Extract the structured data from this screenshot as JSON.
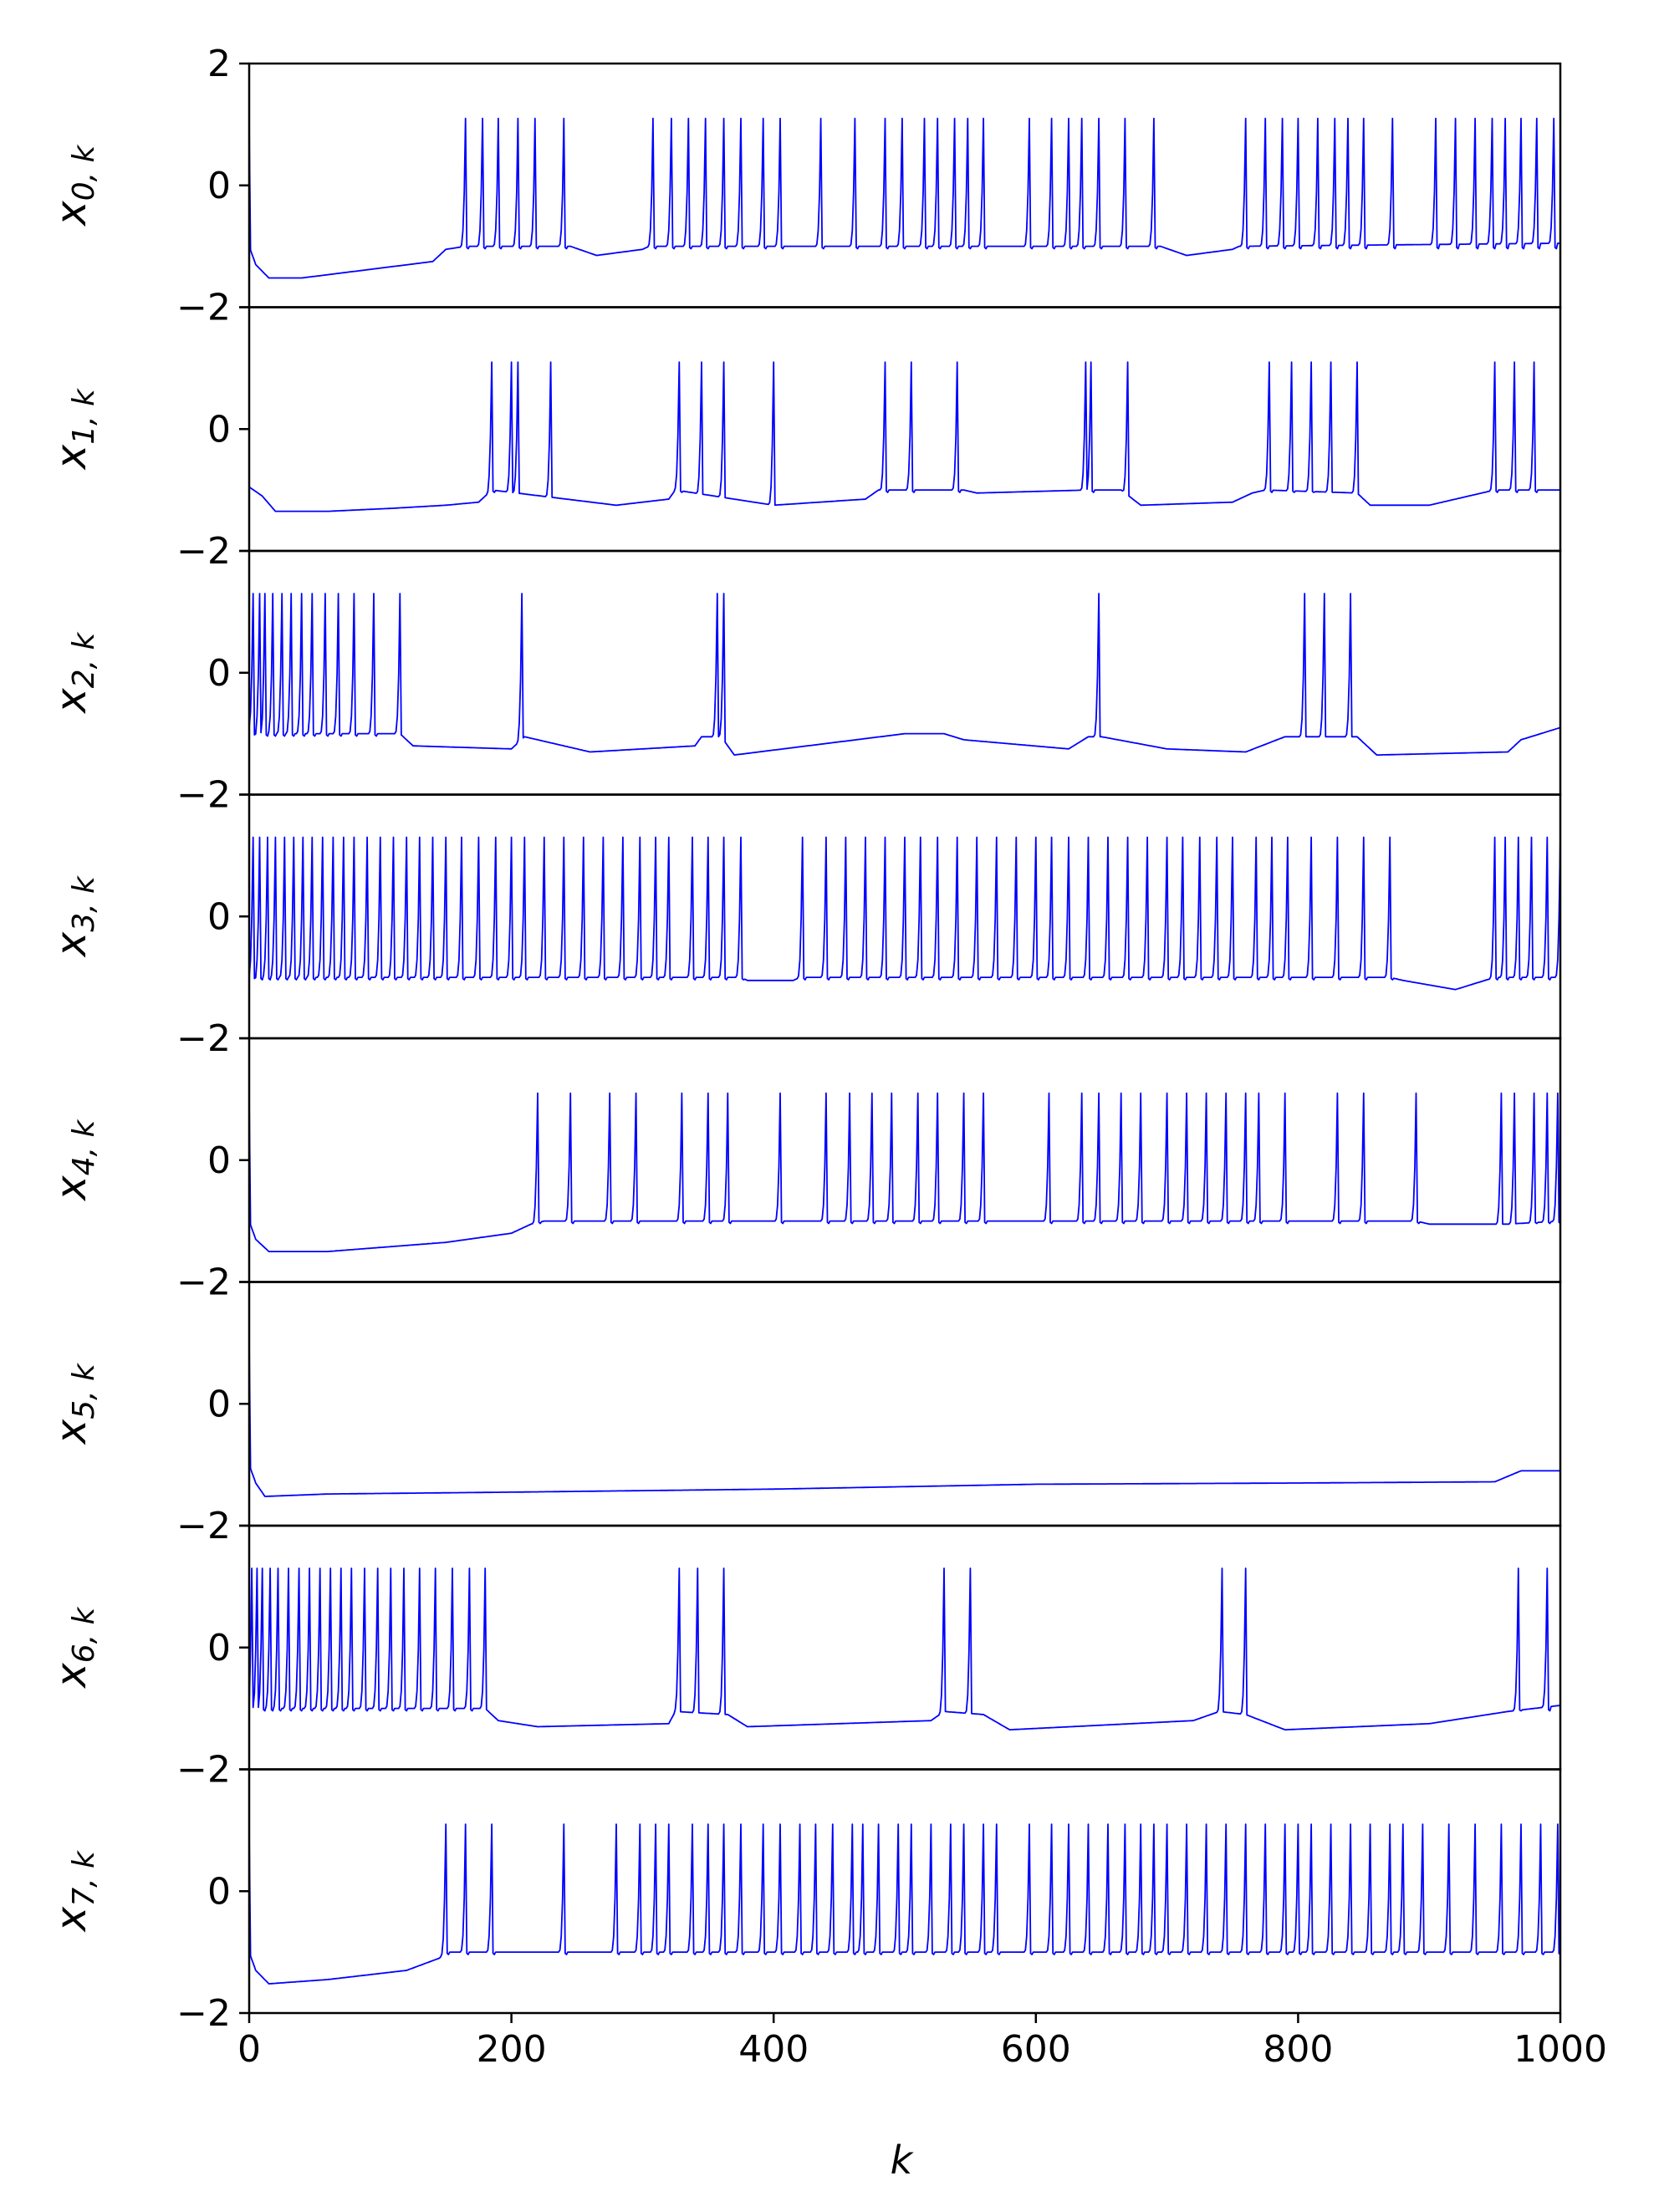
{
  "figure": {
    "xlabel": "k",
    "line_color": "#0000ff",
    "axis_color": "#000000",
    "background": "#ffffff"
  },
  "chart_data": {
    "type": "line",
    "layout": "8 vertically stacked panels sharing x axis",
    "x_range": [
      0,
      1000
    ],
    "y_range": [
      -2,
      2
    ],
    "x_ticks": [
      0,
      200,
      400,
      600,
      800,
      1000
    ],
    "x_tick_labels": [
      "0",
      "200",
      "400",
      "600",
      "800",
      "1000"
    ],
    "y_ticks": [
      2,
      0,
      -2
    ],
    "y_tick_labels": [
      "2",
      "0",
      "−2"
    ],
    "xlabel": "k",
    "grid": false,
    "legend": "none",
    "series": [
      {
        "label_base": "x",
        "label_sub": "0, k",
        "onset": 1.0,
        "rest": -1.05,
        "peak": 1.1,
        "baseline": [
          [
            0,
            -1.0
          ],
          [
            5,
            -1.3
          ],
          [
            15,
            -1.52
          ],
          [
            40,
            -1.52
          ],
          [
            140,
            -1.25
          ],
          [
            150,
            -1.05
          ],
          [
            165,
            -1.0
          ],
          [
            245,
            -1.0
          ],
          [
            265,
            -1.15
          ],
          [
            300,
            -1.05
          ],
          [
            305,
            -1.0
          ],
          [
            560,
            -1.0
          ],
          [
            565,
            -1.0
          ],
          [
            695,
            -1.0
          ],
          [
            715,
            -1.15
          ],
          [
            750,
            -1.05
          ],
          [
            755,
            -1.0
          ],
          [
            1000,
            -0.95
          ]
        ],
        "spikes": [
          165,
          178,
          190,
          205,
          218,
          240,
          308,
          322,
          335,
          348,
          362,
          375,
          392,
          405,
          436,
          462,
          485,
          498,
          515,
          525,
          538,
          548,
          560,
          595,
          612,
          625,
          635,
          648,
          668,
          690,
          760,
          775,
          788,
          800,
          815,
          828,
          838,
          850,
          872,
          905,
          920,
          935,
          948,
          958,
          970,
          982,
          995
        ]
      },
      {
        "label_base": "x",
        "label_sub": "1, k",
        "onset": -0.95,
        "rest": -1.25,
        "peak": 1.1,
        "baseline": [
          [
            0,
            -0.95
          ],
          [
            10,
            -1.1
          ],
          [
            20,
            -1.35
          ],
          [
            60,
            -1.35
          ],
          [
            110,
            -1.3
          ],
          [
            150,
            -1.25
          ],
          [
            175,
            -1.2
          ],
          [
            185,
            -1.0
          ],
          [
            280,
            -1.25
          ],
          [
            320,
            -1.15
          ],
          [
            325,
            -1.0
          ],
          [
            400,
            -1.25
          ],
          [
            470,
            -1.15
          ],
          [
            480,
            -1.0
          ],
          [
            545,
            -1.0
          ],
          [
            555,
            -1.05
          ],
          [
            640,
            -1.0
          ],
          [
            665,
            -1.0
          ],
          [
            680,
            -1.25
          ],
          [
            750,
            -1.2
          ],
          [
            765,
            -1.05
          ],
          [
            775,
            -1.0
          ],
          [
            845,
            -1.05
          ],
          [
            855,
            -1.25
          ],
          [
            900,
            -1.25
          ],
          [
            940,
            -1.05
          ],
          [
            950,
            -1.0
          ],
          [
            1000,
            -1.0
          ]
        ],
        "spikes": [
          185,
          200,
          205,
          230,
          328,
          345,
          362,
          400,
          485,
          505,
          540,
          638,
          642,
          670,
          778,
          795,
          810,
          825,
          845,
          950,
          965,
          980
        ]
      },
      {
        "label_base": "x",
        "label_sub": "2, k",
        "onset": -0.9,
        "rest": -1.3,
        "peak": 1.3,
        "baseline": [
          [
            0,
            -0.9
          ],
          [
            5,
            -1.0
          ],
          [
            115,
            -1.0
          ],
          [
            125,
            -1.2
          ],
          [
            200,
            -1.25
          ],
          [
            210,
            -1.05
          ],
          [
            260,
            -1.3
          ],
          [
            340,
            -1.2
          ],
          [
            345,
            -1.05
          ],
          [
            360,
            -1.05
          ],
          [
            370,
            -1.35
          ],
          [
            500,
            -1.0
          ],
          [
            530,
            -1.0
          ],
          [
            545,
            -1.1
          ],
          [
            625,
            -1.25
          ],
          [
            640,
            -1.05
          ],
          [
            650,
            -1.05
          ],
          [
            700,
            -1.25
          ],
          [
            760,
            -1.3
          ],
          [
            790,
            -1.05
          ],
          [
            845,
            -1.05
          ],
          [
            860,
            -1.35
          ],
          [
            960,
            -1.3
          ],
          [
            970,
            -1.1
          ],
          [
            1000,
            -0.9
          ]
        ],
        "spikes": [
          3,
          8,
          12,
          18,
          25,
          32,
          40,
          48,
          58,
          68,
          80,
          95,
          115,
          208,
          357,
          362,
          648,
          805,
          820,
          840
        ]
      },
      {
        "label_base": "x",
        "label_sub": "3, k",
        "onset": -1.0,
        "rest": -1.0,
        "peak": 1.3,
        "baseline": [
          [
            0,
            -1.0
          ],
          [
            375,
            -1.0
          ],
          [
            380,
            -1.05
          ],
          [
            415,
            -1.05
          ],
          [
            420,
            -1.0
          ],
          [
            870,
            -1.0
          ],
          [
            880,
            -1.05
          ],
          [
            920,
            -1.2
          ],
          [
            950,
            -1.0
          ],
          [
            1000,
            -1.0
          ]
        ],
        "spikes": [
          3,
          8,
          14,
          20,
          27,
          34,
          41,
          48,
          56,
          64,
          72,
          80,
          90,
          100,
          110,
          120,
          130,
          140,
          150,
          162,
          175,
          188,
          200,
          210,
          225,
          240,
          255,
          270,
          285,
          298,
          310,
          320,
          338,
          350,
          362,
          375,
          422,
          440,
          455,
          470,
          485,
          500,
          512,
          525,
          540,
          555,
          570,
          585,
          600,
          612,
          625,
          640,
          655,
          670,
          685,
          700,
          712,
          725,
          738,
          750,
          768,
          780,
          792,
          810,
          830,
          850,
          870,
          950,
          958,
          968,
          978,
          990,
          1000
        ]
      },
      {
        "label_base": "x",
        "label_sub": "4, k",
        "onset": 1.0,
        "rest": -1.1,
        "peak": 1.1,
        "baseline": [
          [
            0,
            -1.0
          ],
          [
            5,
            -1.3
          ],
          [
            15,
            -1.5
          ],
          [
            60,
            -1.5
          ],
          [
            150,
            -1.35
          ],
          [
            200,
            -1.2
          ],
          [
            215,
            -1.05
          ],
          [
            225,
            -1.0
          ],
          [
            890,
            -1.0
          ],
          [
            900,
            -1.05
          ],
          [
            960,
            -1.05
          ],
          [
            1000,
            -1.0
          ]
        ],
        "spikes": [
          220,
          245,
          275,
          295,
          330,
          350,
          365,
          405,
          440,
          458,
          475,
          490,
          510,
          525,
          545,
          560,
          610,
          635,
          648,
          665,
          680,
          700,
          715,
          730,
          745,
          760,
          770,
          790,
          830,
          850,
          890,
          955,
          965,
          980,
          990,
          998
        ]
      },
      {
        "label_base": "x",
        "label_sub": "5, k",
        "onset": 1.0,
        "rest": -1.45,
        "peak": 1.0,
        "baseline": [
          [
            0,
            -1.0
          ],
          [
            5,
            -1.3
          ],
          [
            12,
            -1.52
          ],
          [
            60,
            -1.48
          ],
          [
            200,
            -1.45
          ],
          [
            400,
            -1.4
          ],
          [
            600,
            -1.32
          ],
          [
            800,
            -1.3
          ],
          [
            950,
            -1.28
          ],
          [
            970,
            -1.1
          ],
          [
            1000,
            -1.1
          ]
        ],
        "spikes": []
      },
      {
        "label_base": "x",
        "label_sub": "6, k",
        "onset": -1.0,
        "rest": -1.3,
        "peak": 1.3,
        "baseline": [
          [
            0,
            -1.0
          ],
          [
            180,
            -1.0
          ],
          [
            190,
            -1.2
          ],
          [
            220,
            -1.3
          ],
          [
            320,
            -1.25
          ],
          [
            325,
            -1.05
          ],
          [
            365,
            -1.1
          ],
          [
            380,
            -1.3
          ],
          [
            520,
            -1.2
          ],
          [
            530,
            -1.05
          ],
          [
            560,
            -1.1
          ],
          [
            580,
            -1.35
          ],
          [
            720,
            -1.2
          ],
          [
            740,
            -1.05
          ],
          [
            760,
            -1.1
          ],
          [
            790,
            -1.35
          ],
          [
            900,
            -1.25
          ],
          [
            960,
            -1.05
          ],
          [
            1000,
            -0.95
          ]
        ],
        "spikes": [
          2,
          6,
          10,
          16,
          22,
          30,
          38,
          46,
          54,
          62,
          70,
          78,
          88,
          98,
          108,
          118,
          130,
          142,
          155,
          168,
          180,
          328,
          342,
          362,
          530,
          550,
          742,
          760,
          968,
          990
        ]
      },
      {
        "label_base": "x",
        "label_sub": "7, k",
        "onset": 1.0,
        "rest": -1.05,
        "peak": 1.1,
        "baseline": [
          [
            0,
            -1.0
          ],
          [
            5,
            -1.3
          ],
          [
            15,
            -1.52
          ],
          [
            60,
            -1.45
          ],
          [
            120,
            -1.3
          ],
          [
            145,
            -1.1
          ],
          [
            150,
            -1.0
          ],
          [
            195,
            -1.0
          ],
          [
            240,
            -1.0
          ],
          [
            270,
            -1.0
          ],
          [
            1000,
            -1.0
          ]
        ],
        "spikes": [
          150,
          165,
          185,
          240,
          280,
          298,
          310,
          320,
          338,
          350,
          362,
          375,
          392,
          405,
          420,
          432,
          445,
          460,
          468,
          480,
          495,
          505,
          520,
          535,
          545,
          560,
          570,
          595,
          612,
          625,
          640,
          655,
          668,
          680,
          690,
          700,
          715,
          730,
          745,
          760,
          775,
          790,
          800,
          810,
          825,
          840,
          855,
          870,
          880,
          895,
          915,
          935,
          955,
          970,
          985,
          998
        ]
      }
    ]
  }
}
